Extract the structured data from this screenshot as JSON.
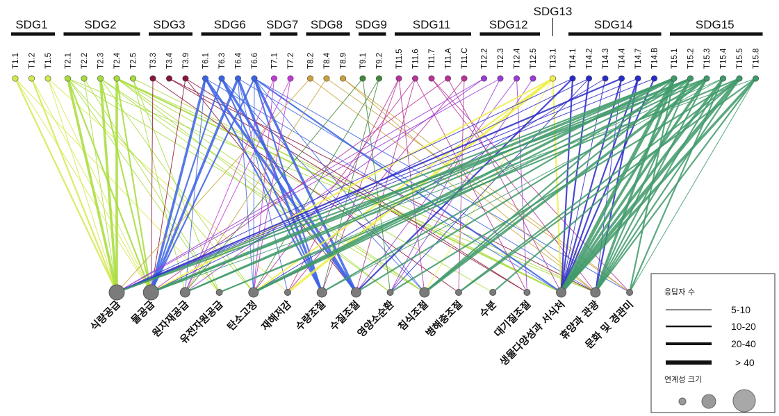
{
  "sdg_groups": [
    {
      "label": "SDG1",
      "color": "#d6e84a",
      "targets": [
        "T1.1",
        "T1.2",
        "T1.5"
      ]
    },
    {
      "label": "SDG2",
      "color": "#a7dc3a",
      "targets": [
        "T2.1",
        "T2.2",
        "T2.3",
        "T2.4",
        "T2.5"
      ]
    },
    {
      "label": "SDG3",
      "color": "#8a1538",
      "targets": [
        "T3.3",
        "T3.4",
        "T3.9"
      ]
    },
    {
      "label": "SDG6",
      "color": "#3a62e4",
      "targets": [
        "T6.1",
        "T6.3",
        "T6.4",
        "T6.6"
      ]
    },
    {
      "label": "SDG7",
      "color": "#c03ad0",
      "targets": [
        "T7.1",
        "T7.2"
      ]
    },
    {
      "label": "SDG8",
      "color": "#c9a23a",
      "targets": [
        "T8.2",
        "T8.4",
        "T8.9"
      ]
    },
    {
      "label": "SDG9",
      "color": "#3f8a3a",
      "targets": [
        "T9.1",
        "T9.2"
      ]
    },
    {
      "label": "SDG11",
      "color": "#b8329a",
      "targets": [
        "T11.5",
        "T11.6",
        "T11.7",
        "T11.A",
        "T11.C"
      ]
    },
    {
      "label": "SDG12",
      "color": "#9b3ad6",
      "targets": [
        "T12.2",
        "T12.3",
        "T12.4",
        "T12.5"
      ]
    },
    {
      "label": "SDG13",
      "color": "#f0ef4a",
      "targets": [
        "T13.1"
      ]
    },
    {
      "label": "SDG14",
      "color": "#2a2ac8",
      "targets": [
        "T14.1",
        "T14.2",
        "T14.3",
        "T14.4",
        "T14.7",
        "T14.B"
      ]
    },
    {
      "label": "SDG15",
      "color": "#3f9a6a",
      "targets": [
        "T15.1",
        "T15.2",
        "T15.3",
        "T15.4",
        "T15.5",
        "T15.8"
      ]
    }
  ],
  "ecosystem_services": [
    {
      "label": "식량공급",
      "size": 3
    },
    {
      "label": "물공급",
      "size": 3
    },
    {
      "label": "원자재공급",
      "size": 2
    },
    {
      "label": "유전자원공급",
      "size": 1
    },
    {
      "label": "탄소고정",
      "size": 2
    },
    {
      "label": "재해저감",
      "size": 1
    },
    {
      "label": "수량조절",
      "size": 2
    },
    {
      "label": "수질조절",
      "size": 2
    },
    {
      "label": "영양소순환",
      "size": 1
    },
    {
      "label": "침식조절",
      "size": 2
    },
    {
      "label": "병해충조절",
      "size": 1
    },
    {
      "label": "수분",
      "size": 1
    },
    {
      "label": "대기질조절",
      "size": 1
    },
    {
      "label": "생물다양성과 서식처",
      "size": 2
    },
    {
      "label": "휴양과 관광",
      "size": 2
    },
    {
      "label": "문화 및 경관미",
      "size": 1
    }
  ],
  "links": [
    [
      "T1.1",
      0,
      2
    ],
    [
      "T1.1",
      1,
      1
    ],
    [
      "T1.1",
      3,
      1
    ],
    [
      "T1.2",
      0,
      2
    ],
    [
      "T1.2",
      1,
      1
    ],
    [
      "T1.5",
      0,
      1
    ],
    [
      "T1.5",
      5,
      1
    ],
    [
      "T1.5",
      1,
      1
    ],
    [
      "T2.1",
      0,
      3
    ],
    [
      "T2.1",
      1,
      2
    ],
    [
      "T2.1",
      3,
      1
    ],
    [
      "T2.1",
      4,
      1
    ],
    [
      "T2.1",
      9,
      1
    ],
    [
      "T2.1",
      14,
      1
    ],
    [
      "T2.2",
      0,
      1
    ],
    [
      "T2.2",
      3,
      1
    ],
    [
      "T2.3",
      0,
      3
    ],
    [
      "T2.3",
      1,
      2
    ],
    [
      "T2.3",
      4,
      1
    ],
    [
      "T2.3",
      9,
      1
    ],
    [
      "T2.3",
      8,
      1
    ],
    [
      "T2.4",
      0,
      3
    ],
    [
      "T2.4",
      1,
      2
    ],
    [
      "T2.4",
      8,
      1
    ],
    [
      "T2.4",
      9,
      1
    ],
    [
      "T2.4",
      11,
      1
    ],
    [
      "T2.4",
      13,
      2
    ],
    [
      "T2.4",
      14,
      1
    ],
    [
      "T2.5",
      3,
      1
    ],
    [
      "T2.5",
      2,
      1
    ],
    [
      "T2.5",
      13,
      1
    ],
    [
      "T3.3",
      1,
      1
    ],
    [
      "T3.3",
      10,
      1
    ],
    [
      "T3.4",
      14,
      1
    ],
    [
      "T3.4",
      12,
      1
    ],
    [
      "T3.9",
      7,
      1
    ],
    [
      "T3.9",
      12,
      1
    ],
    [
      "T3.9",
      1,
      1
    ],
    [
      "T6.1",
      1,
      3
    ],
    [
      "T6.1",
      7,
      3
    ],
    [
      "T6.1",
      6,
      2
    ],
    [
      "T6.1",
      2,
      1
    ],
    [
      "T6.1",
      13,
      1
    ],
    [
      "T6.3",
      7,
      3
    ],
    [
      "T6.3",
      1,
      2
    ],
    [
      "T6.3",
      6,
      2
    ],
    [
      "T6.3",
      9,
      1
    ],
    [
      "T6.4",
      1,
      3
    ],
    [
      "T6.4",
      6,
      3
    ],
    [
      "T6.4",
      5,
      1
    ],
    [
      "T6.4",
      4,
      1
    ],
    [
      "T6.4",
      14,
      1
    ],
    [
      "T6.6",
      7,
      3
    ],
    [
      "T6.6",
      1,
      2
    ],
    [
      "T6.6",
      13,
      2
    ],
    [
      "T6.6",
      6,
      2
    ],
    [
      "T6.6",
      4,
      1
    ],
    [
      "T6.6",
      9,
      1
    ],
    [
      "T6.6",
      15,
      1
    ],
    [
      "T7.1",
      2,
      1
    ],
    [
      "T7.1",
      4,
      1
    ],
    [
      "T7.2",
      4,
      1
    ],
    [
      "T7.2",
      2,
      1
    ],
    [
      "T8.2",
      14,
      1
    ],
    [
      "T8.2",
      0,
      1
    ],
    [
      "T8.4",
      2,
      1
    ],
    [
      "T8.4",
      15,
      1
    ],
    [
      "T8.9",
      14,
      1
    ],
    [
      "T8.9",
      15,
      1
    ],
    [
      "T9.1",
      2,
      1
    ],
    [
      "T9.1",
      8,
      1
    ],
    [
      "T9.2",
      4,
      1
    ],
    [
      "T9.2",
      6,
      1
    ],
    [
      "T11.5",
      5,
      1
    ],
    [
      "T11.5",
      9,
      1
    ],
    [
      "T11.5",
      6,
      1
    ],
    [
      "T11.6",
      12,
      1
    ],
    [
      "T11.6",
      4,
      1
    ],
    [
      "T11.6",
      7,
      1
    ],
    [
      "T11.7",
      14,
      1
    ],
    [
      "T11.7",
      15,
      1
    ],
    [
      "T11.A",
      1,
      1
    ],
    [
      "T11.A",
      13,
      1
    ],
    [
      "T11.C",
      5,
      1
    ],
    [
      "T11.C",
      10,
      1
    ],
    [
      "T12.2",
      2,
      1
    ],
    [
      "T12.2",
      0,
      1
    ],
    [
      "T12.3",
      0,
      1
    ],
    [
      "T12.3",
      8,
      1
    ],
    [
      "T12.4",
      12,
      1
    ],
    [
      "T12.4",
      7,
      1
    ],
    [
      "T12.5",
      8,
      1
    ],
    [
      "T13.1",
      4,
      2
    ],
    [
      "T13.1",
      5,
      3
    ],
    [
      "T13.1",
      1,
      2
    ],
    [
      "T13.1",
      9,
      1
    ],
    [
      "T13.1",
      13,
      2
    ],
    [
      "T14.1",
      7,
      2
    ],
    [
      "T14.1",
      13,
      2
    ],
    [
      "T14.1",
      0,
      1
    ],
    [
      "T14.2",
      13,
      2
    ],
    [
      "T14.2",
      1,
      1
    ],
    [
      "T14.2",
      8,
      1
    ],
    [
      "T14.3",
      4,
      1
    ],
    [
      "T14.3",
      13,
      1
    ],
    [
      "T14.4",
      0,
      2
    ],
    [
      "T14.4",
      13,
      2
    ],
    [
      "T14.4",
      14,
      1
    ],
    [
      "T14.7",
      13,
      2
    ],
    [
      "T14.7",
      14,
      2
    ],
    [
      "T14.7",
      0,
      1
    ],
    [
      "T14.B",
      13,
      2
    ],
    [
      "T14.B",
      0,
      1
    ],
    [
      "T15.1",
      13,
      4
    ],
    [
      "T15.1",
      0,
      2
    ],
    [
      "T15.1",
      1,
      3
    ],
    [
      "T15.1",
      4,
      3
    ],
    [
      "T15.1",
      9,
      2
    ],
    [
      "T15.1",
      14,
      3
    ],
    [
      "T15.1",
      15,
      2
    ],
    [
      "T15.1",
      2,
      2
    ],
    [
      "T15.2",
      13,
      3
    ],
    [
      "T15.2",
      4,
      2
    ],
    [
      "T15.2",
      2,
      2
    ],
    [
      "T15.2",
      6,
      2
    ],
    [
      "T15.2",
      14,
      2
    ],
    [
      "T15.2",
      9,
      2
    ],
    [
      "T15.2",
      1,
      2
    ],
    [
      "T15.3",
      13,
      3
    ],
    [
      "T15.3",
      9,
      3
    ],
    [
      "T15.3",
      4,
      2
    ],
    [
      "T15.3",
      14,
      2
    ],
    [
      "T15.3",
      7,
      2
    ],
    [
      "T15.3",
      0,
      2
    ],
    [
      "T15.4",
      13,
      3
    ],
    [
      "T15.4",
      14,
      2
    ],
    [
      "T15.4",
      15,
      2
    ],
    [
      "T15.4",
      6,
      1
    ],
    [
      "T15.4",
      3,
      1
    ],
    [
      "T15.5",
      13,
      4
    ],
    [
      "T15.5",
      3,
      2
    ],
    [
      "T15.5",
      14,
      2
    ],
    [
      "T15.5",
      10,
      2
    ],
    [
      "T15.5",
      11,
      2
    ],
    [
      "T15.5",
      8,
      2
    ],
    [
      "T15.8",
      13,
      3
    ],
    [
      "T15.8",
      10,
      2
    ],
    [
      "T15.8",
      15,
      1
    ],
    [
      "T15.8",
      14,
      2
    ],
    [
      "T15.8",
      1,
      1
    ]
  ],
  "legend": {
    "line_title": "응답자 수",
    "line_items": [
      "5-10",
      "10-20",
      "20-40",
      "> 40"
    ],
    "node_title": "연계성 크기"
  }
}
